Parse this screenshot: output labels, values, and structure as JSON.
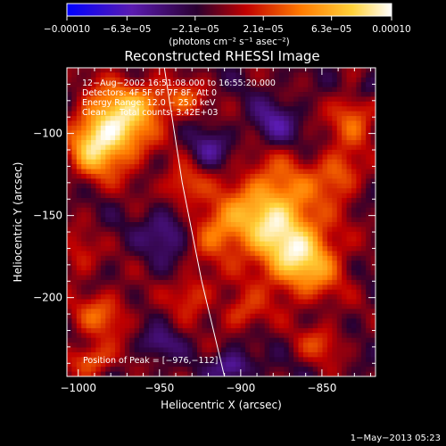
{
  "chart_data": {
    "type": "heatmap",
    "title": "Reconstructed RHESSI Image",
    "xlabel": "Heliocentric X (arcsec)",
    "ylabel": "Heliocentric Y (arcsec)",
    "xlim": [
      -1007,
      -817
    ],
    "ylim": [
      -248,
      -60
    ],
    "x_ticks": [
      -1000,
      -950,
      -900,
      -850
    ],
    "x_tick_labels": [
      "−1000",
      "−950",
      "−900",
      "−850"
    ],
    "y_ticks": [
      -100,
      -150,
      -200
    ],
    "y_tick_labels": [
      "−100",
      "−150",
      "−200"
    ],
    "colorbar": {
      "range": [
        -0.0001,
        0.0001
      ],
      "ticks": [
        -0.0001,
        -6.3e-05,
        -2.1e-05,
        2.1e-05,
        6.3e-05,
        0.0001
      ],
      "tick_labels": [
        "−0.00010",
        "−6.3e−05",
        "−2.1e−05",
        "2.1e−05",
        "6.3e−05",
        "0.00010"
      ],
      "unit_label": "(photons cm⁻² s⁻¹ asec⁻²)",
      "colors": [
        "#0000ff",
        "#5a1bb0",
        "#2a0030",
        "#c00000",
        "#ff7a00",
        "#ffd23a",
        "#ffffff"
      ]
    },
    "info_lines": [
      "12−Aug−2002 16:51:08.000 to 16:55:20.000",
      "Detectors: 4F 5F 6F 7F 8F, Att 0",
      "Energy Range: 12.0 − 25.0 keV",
      "Clean     Total counts: 3.42E+03"
    ],
    "peak_label": "Position of Peak = [−976,−112]",
    "peak": [
      -976,
      -112
    ],
    "sources": [
      {
        "x": -975,
        "y": -95,
        "amp": 9.5e-05,
        "sx": 14,
        "sy": 17
      },
      {
        "x": -992,
        "y": -108,
        "amp": 6e-05,
        "sx": 10,
        "sy": 14
      },
      {
        "x": -955,
        "y": -80,
        "amp": 3.5e-05,
        "sx": 10,
        "sy": 8
      },
      {
        "x": -935,
        "y": -80,
        "amp": 4e-05,
        "sx": 9,
        "sy": 8
      },
      {
        "x": -935,
        "y": -132,
        "amp": 4.5e-05,
        "sx": 9,
        "sy": 9
      },
      {
        "x": -1000,
        "y": -175,
        "amp": 3e-05,
        "sx": 8,
        "sy": 10
      },
      {
        "x": -985,
        "y": -210,
        "amp": 4.5e-05,
        "sx": 12,
        "sy": 10
      },
      {
        "x": -992,
        "y": -238,
        "amp": 5e-05,
        "sx": 10,
        "sy": 7
      },
      {
        "x": -930,
        "y": -198,
        "amp": 4e-05,
        "sx": 9,
        "sy": 9
      },
      {
        "x": -915,
        "y": -158,
        "amp": 5e-05,
        "sx": 12,
        "sy": 12
      },
      {
        "x": -880,
        "y": -150,
        "amp": 9e-05,
        "sx": 18,
        "sy": 22
      },
      {
        "x": -860,
        "y": -178,
        "amp": 7e-05,
        "sx": 16,
        "sy": 16
      },
      {
        "x": -840,
        "y": -125,
        "amp": 5e-05,
        "sx": 10,
        "sy": 10
      },
      {
        "x": -830,
        "y": -90,
        "amp": 5e-05,
        "sx": 10,
        "sy": 12
      },
      {
        "x": -900,
        "y": -210,
        "amp": 3.5e-05,
        "sx": 10,
        "sy": 8
      },
      {
        "x": -850,
        "y": -228,
        "amp": 3.5e-05,
        "sx": 10,
        "sy": 8
      },
      {
        "x": -945,
        "y": -160,
        "amp": -4e-05,
        "sx": 10,
        "sy": 10
      },
      {
        "x": -920,
        "y": -110,
        "amp": -3.5e-05,
        "sx": 8,
        "sy": 8
      },
      {
        "x": -880,
        "y": -95,
        "amp": -4e-05,
        "sx": 10,
        "sy": 10
      },
      {
        "x": -905,
        "y": -242,
        "amp": -5e-05,
        "sx": 8,
        "sy": 6
      },
      {
        "x": -822,
        "y": -72,
        "amp": -3e-05,
        "sx": 6,
        "sy": 6
      },
      {
        "x": -950,
        "y": -228,
        "amp": -3e-05,
        "sx": 8,
        "sy": 6
      }
    ],
    "limb_curve": [
      [
        -947,
        -60
      ],
      [
        -936,
        -130
      ],
      [
        -924,
        -190
      ],
      [
        -910,
        -248
      ]
    ]
  },
  "footer": {
    "timestamp": "1−May−2013 05:23"
  }
}
